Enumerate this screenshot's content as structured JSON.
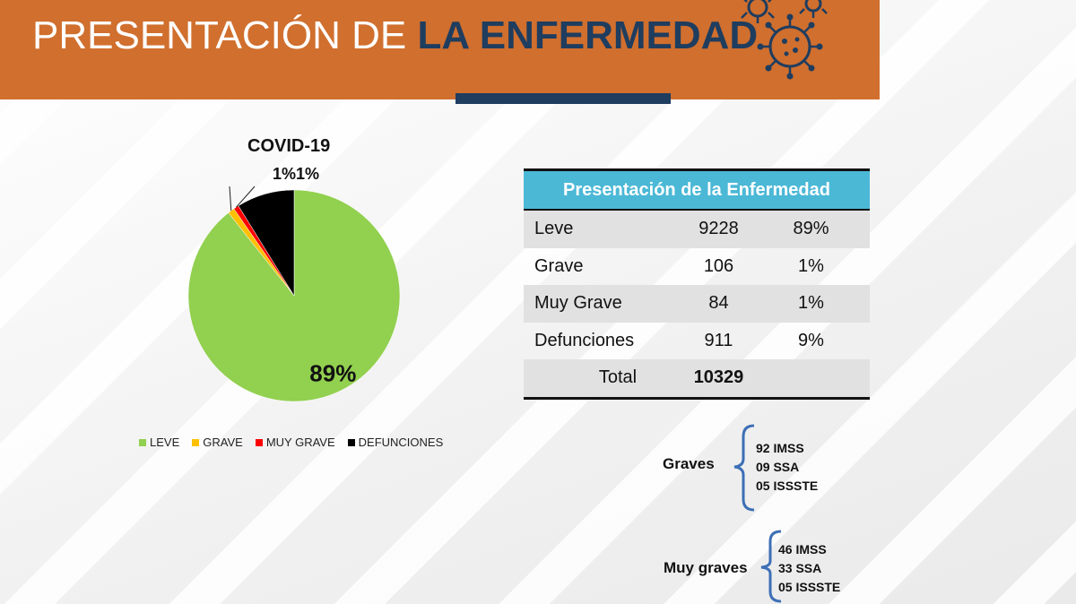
{
  "header": {
    "title_light": "PRESENTACIÓN DE ",
    "title_bold": "LA ENFERMEDAD",
    "colors": {
      "background": "#d06f2e",
      "accent": "#1f3d5f"
    }
  },
  "chart_data": {
    "type": "pie",
    "title": "COVID-19",
    "categories": [
      "LEVE",
      "GRAVE",
      "MUY GRAVE",
      "DEFUNCIONES"
    ],
    "values": [
      9228,
      106,
      84,
      911
    ],
    "percent_labels": [
      "89%",
      "1%",
      "1%",
      ""
    ],
    "top_labels": "1%1%",
    "colors": [
      "#92d050",
      "#ffc000",
      "#ff0000",
      "#000000"
    ],
    "legend_position": "bottom"
  },
  "table": {
    "header": "Presentación de la Enfermedad",
    "rows": [
      {
        "label": "Leve",
        "count": "9228",
        "pct": "89%"
      },
      {
        "label": "Grave",
        "count": "106",
        "pct": "1%"
      },
      {
        "label": "Muy Grave",
        "count": "84",
        "pct": "1%"
      },
      {
        "label": "Defunciones",
        "count": "911",
        "pct": "9%"
      }
    ],
    "total": {
      "label": "Total",
      "count": "10329",
      "pct": ""
    }
  },
  "graves": {
    "label": "Graves",
    "items": [
      "92 IMSS",
      "09 SSA",
      "05 ISSSTE"
    ]
  },
  "muy_graves": {
    "label": "Muy graves",
    "items": [
      "46 IMSS",
      "33 SSA",
      "05 ISSSTE"
    ]
  }
}
